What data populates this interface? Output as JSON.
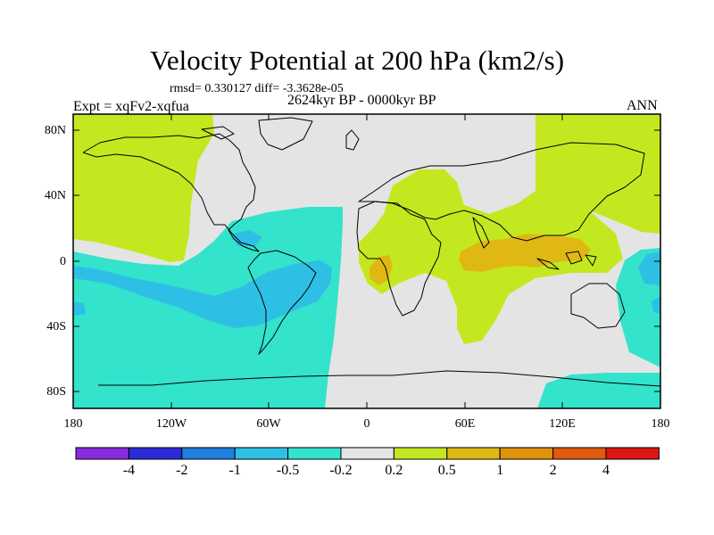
{
  "figure": {
    "title": "Velocity Potential at 200 hPa (km2/s)",
    "rmsd_text": "rmsd= 0.330127 diff= -3.3628e-05",
    "expt_text": "Expt = xqFv2-xqfua",
    "period_text": "2624kyr BP - 0000kyr BP",
    "season_text": "ANN"
  },
  "axes": {
    "x_ticks": [
      "180",
      "120W",
      "60W",
      "0",
      "60E",
      "120E",
      "180"
    ],
    "y_ticks": [
      "80N",
      "40N",
      "0",
      "40S",
      "80S"
    ]
  },
  "colorbar": {
    "labels": [
      "-4",
      "-2",
      "-1",
      "-0.5",
      "-0.2",
      "0.2",
      "0.5",
      "1",
      "2",
      "4"
    ],
    "colors": [
      "#8a2be2",
      "#2a2ad8",
      "#1e7fdc",
      "#2ec0e4",
      "#33e3cc",
      "#e4e4e4",
      "#c4e81f",
      "#e0b814",
      "#e0920a",
      "#e05a10",
      "#e01515"
    ]
  },
  "chart_data": {
    "type": "heatmap",
    "title": "Velocity Potential at 200 hPa (km2/s)",
    "projection": "cylindrical equidistant",
    "x_range": [
      -180,
      180
    ],
    "y_range": [
      -90,
      90
    ],
    "levels": [
      -4,
      -2,
      -1,
      -0.5,
      -0.2,
      0.2,
      0.5,
      1,
      2,
      4
    ],
    "regions": [
      {
        "name": "positive 0.2-0.5 (Indian Ocean / Africa / Asia)",
        "level_min": 0.2,
        "level_max": 0.5,
        "color": "#c4e81f"
      },
      {
        "name": "positive 0.5-1 (Maritime Continent / equatorial Indian Ocean)",
        "level_min": 0.5,
        "level_max": 1,
        "color": "#e0b814"
      },
      {
        "name": "negative -0.5 to -0.2 (eastern Pacific / South America)",
        "level_min": -0.5,
        "level_max": -0.2,
        "color": "#33e3cc"
      },
      {
        "name": "negative -1 to -0.5 (central Pacific / South America)",
        "level_min": -1,
        "level_max": -0.5,
        "color": "#2ec0e4"
      }
    ]
  }
}
